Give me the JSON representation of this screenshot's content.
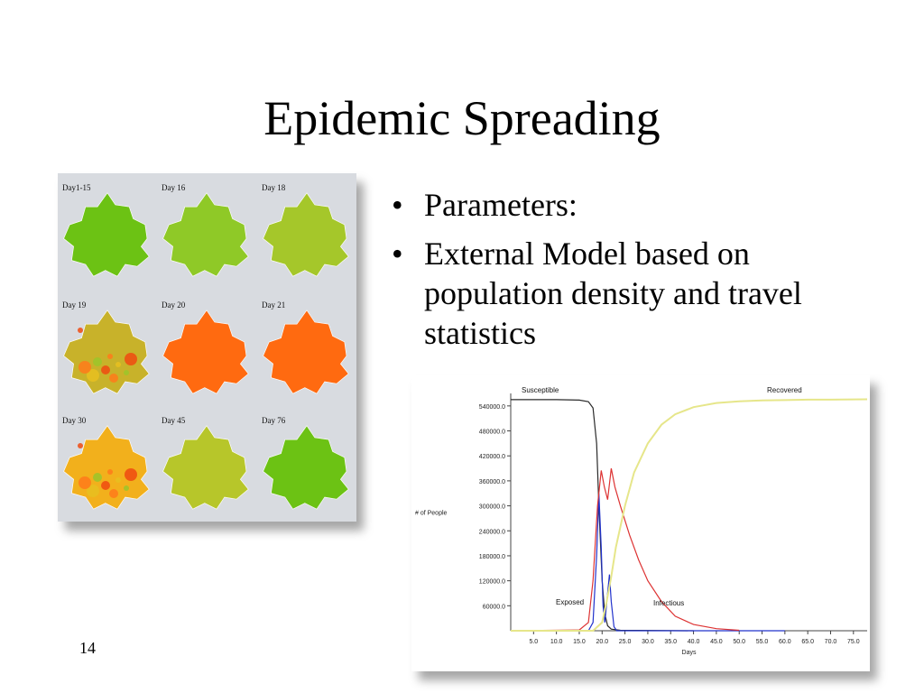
{
  "slide": {
    "title": "Epidemic Spreading",
    "bullets": [
      "Parameters:",
      "External Model based on population density and travel statistics"
    ],
    "slide_number": "14"
  },
  "maps": [
    {
      "label": "Day1-15",
      "color": "#6cc214"
    },
    {
      "label": "Day 16",
      "color": "#8fc927"
    },
    {
      "label": "Day 18",
      "color": "#a5c72a"
    },
    {
      "label": "Day 19",
      "color": "#c8b22a"
    },
    {
      "label": "Day 20",
      "color": "#ff6a10"
    },
    {
      "label": "Day 21",
      "color": "#ff6a10"
    },
    {
      "label": "Day 30",
      "color": "#f2b01c"
    },
    {
      "label": "Day 45",
      "color": "#b7c62a"
    },
    {
      "label": "Day 76",
      "color": "#6cc214"
    }
  ],
  "chart_data": {
    "type": "line",
    "xlabel": "Days",
    "ylabel": "# of People",
    "ylim": [
      0,
      570000
    ],
    "xlim": [
      0,
      78
    ],
    "yticks": [
      "60000.0",
      "120000.0",
      "180000.0",
      "240000.0",
      "300000.0",
      "360000.0",
      "420000.0",
      "480000.0",
      "540000.0"
    ],
    "xticks": [
      "5.0",
      "10.0",
      "15.0",
      "20.0",
      "25.0",
      "30.0",
      "35.0",
      "40.0",
      "45.0",
      "50.0",
      "55.0",
      "60.0",
      "65.0",
      "70.0",
      "75.0"
    ],
    "series": [
      {
        "name": "Susceptible",
        "color": "#2a2a2a",
        "x": [
          0,
          10,
          15,
          17,
          18,
          18.8,
          19.3,
          20,
          20.6,
          21.2,
          22,
          24,
          40
        ],
        "y": [
          555000,
          555000,
          554000,
          550000,
          535000,
          450000,
          300000,
          120000,
          40000,
          12000,
          4000,
          1000,
          0
        ]
      },
      {
        "name": "Exposed",
        "color": "#2233cc",
        "x": [
          0,
          17,
          18,
          18.8,
          19.3,
          19.8,
          20.2,
          20.6,
          21.1,
          21.6,
          22,
          22.6,
          23.2,
          60
        ],
        "y": [
          0,
          0,
          20000,
          180000,
          330000,
          200000,
          60000,
          20000,
          80000,
          135000,
          70000,
          10000,
          0,
          0
        ]
      },
      {
        "name": "Infectious",
        "color": "#dd3333",
        "x": [
          0,
          15,
          17,
          18,
          19,
          19.8,
          20.5,
          21.2,
          22,
          22.8,
          24,
          26,
          28,
          30,
          33,
          36,
          40,
          45,
          50
        ],
        "y": [
          0,
          2000,
          20000,
          120000,
          300000,
          385000,
          345000,
          315000,
          390000,
          345000,
          300000,
          230000,
          170000,
          120000,
          70000,
          35000,
          15000,
          5000,
          1000
        ]
      },
      {
        "name": "Recovered",
        "color": "#e6e68a",
        "x": [
          0,
          18,
          20,
          21,
          22,
          23,
          25,
          27,
          30,
          33,
          36,
          40,
          45,
          50,
          55,
          60,
          65,
          70,
          78
        ],
        "y": [
          0,
          0,
          20000,
          70000,
          130000,
          200000,
          300000,
          380000,
          450000,
          495000,
          520000,
          537000,
          547000,
          551000,
          553000,
          554000,
          555000,
          555000,
          556000
        ]
      }
    ]
  }
}
